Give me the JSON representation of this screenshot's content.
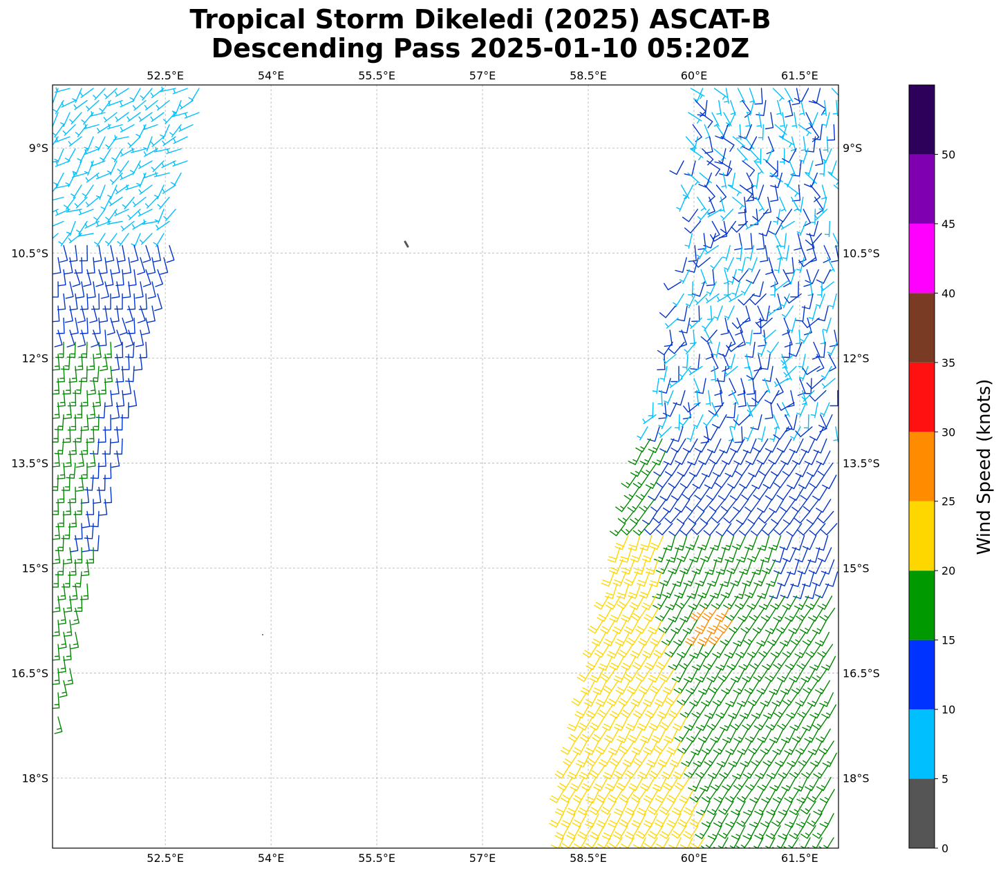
{
  "title": {
    "line1": "Tropical Storm Dikeledi (2025) ASCAT-B",
    "line2": "Descending Pass 2025-01-10 05:20Z"
  },
  "map": {
    "lon_range": [
      50.9,
      62.05
    ],
    "lat_range": [
      -19.0,
      -8.1
    ],
    "lon_ticks": [
      52.5,
      54,
      55.5,
      57,
      58.5,
      60,
      61.5
    ],
    "lon_tick_labels": [
      "52.5°E",
      "54°E",
      "55.5°E",
      "57°E",
      "58.5°E",
      "60°E",
      "61.5°E"
    ],
    "lat_ticks": [
      -9,
      -10.5,
      -12,
      -13.5,
      -15,
      -16.5,
      -18
    ],
    "lat_tick_labels": [
      "9°S",
      "10.5°S",
      "12°S",
      "13.5°S",
      "15°S",
      "16.5°S",
      "18°S"
    ],
    "gridlines": "dashed",
    "land_color": "#555555",
    "barb_colors_by_speed": [
      "#555555",
      "#00bfff",
      "#0033cc",
      "#008800",
      "#ffd700",
      "#ff8c00",
      "#ff1111"
    ]
  },
  "colorbar": {
    "label": "Wind Speed (knots)",
    "bins": [
      {
        "from": 0,
        "to": 5,
        "color": "#555555"
      },
      {
        "from": 5,
        "to": 10,
        "color": "#00bfff"
      },
      {
        "from": 10,
        "to": 15,
        "color": "#0033ff"
      },
      {
        "from": 15,
        "to": 20,
        "color": "#009900"
      },
      {
        "from": 20,
        "to": 25,
        "color": "#ffd700"
      },
      {
        "from": 25,
        "to": 30,
        "color": "#ff8c00"
      },
      {
        "from": 30,
        "to": 35,
        "color": "#ff1111"
      },
      {
        "from": 35,
        "to": 40,
        "color": "#7a3b25"
      },
      {
        "from": 40,
        "to": 45,
        "color": "#ff00ff"
      },
      {
        "from": 45,
        "to": 50,
        "color": "#7f00b0"
      },
      {
        "from": 50,
        "to": 55,
        "color": "#2d0059"
      }
    ],
    "ticks": [
      0,
      5,
      10,
      15,
      20,
      25,
      30,
      35,
      40,
      45,
      50
    ],
    "tick_labels": [
      "0",
      "5",
      "10",
      "15",
      "20",
      "25",
      "30",
      "35",
      "40",
      "45",
      "50"
    ]
  }
}
